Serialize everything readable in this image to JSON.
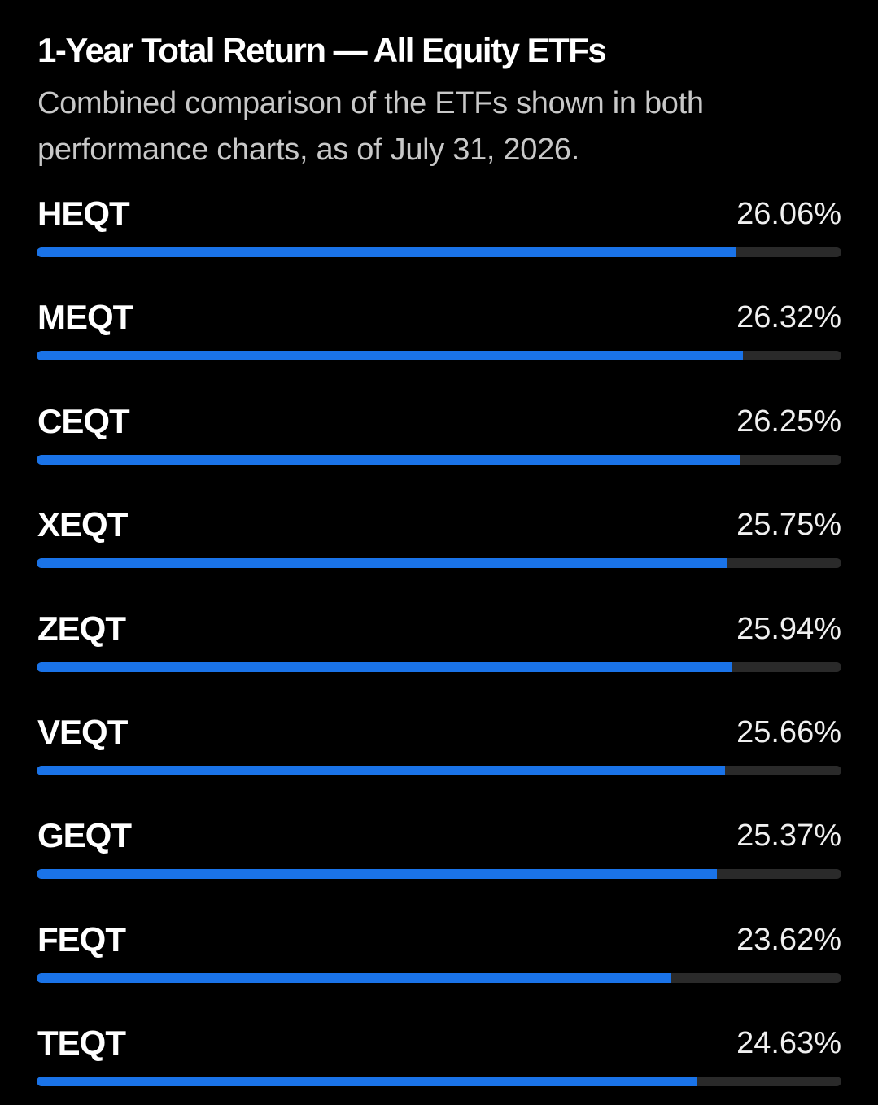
{
  "chart_data": {
    "type": "bar",
    "title": "1-Year Total Return — All Equity ETFs",
    "subtitle": "Combined comparison of the ETFs shown in both performance charts, as of July 31, 2026.",
    "categories": [
      "HEQT",
      "MEQT",
      "CEQT",
      "XEQT",
      "ZEQT",
      "VEQT",
      "GEQT",
      "FEQT",
      "TEQT"
    ],
    "values": [
      26.06,
      26.32,
      26.25,
      25.75,
      25.94,
      25.66,
      25.37,
      23.62,
      24.63
    ],
    "value_labels": [
      "26.06%",
      "26.32%",
      "26.25%",
      "25.75%",
      "25.94%",
      "25.66%",
      "25.37%",
      "23.62%",
      "24.63%"
    ],
    "color": "#1a73e8",
    "xlim": [
      0,
      30
    ]
  }
}
